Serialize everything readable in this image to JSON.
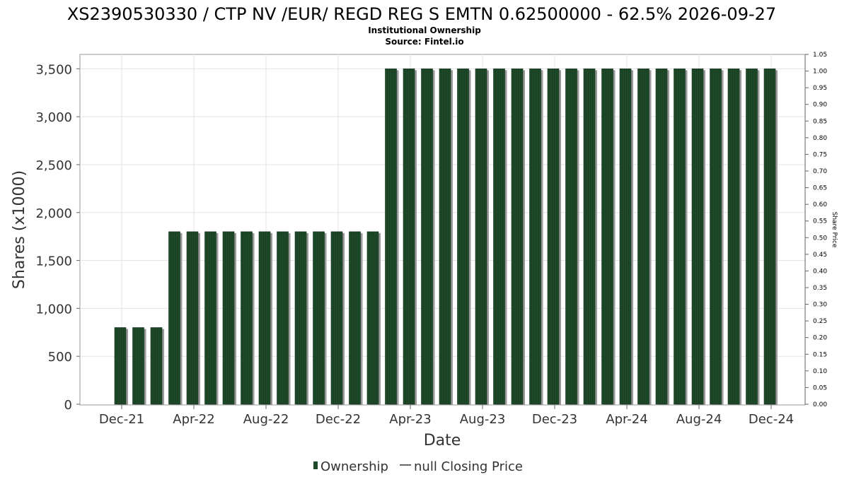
{
  "chart_data": {
    "type": "bar",
    "title": "XS2390530330 / CTP NV /EUR/ REGD REG S EMTN 0.62500000 - 62.5% 2026-09-27",
    "subtitle_1": "Institutional Ownership",
    "subtitle_2": "Source: Fintel.io",
    "xlabel": "Date",
    "ylabel": "Shares (x1000)",
    "ylabel_right": "Share Price",
    "ylim": [
      0,
      3650
    ],
    "ylim_right": [
      0,
      1.05
    ],
    "grid": true,
    "left_ticks": [
      {
        "value": 0,
        "label": "0"
      },
      {
        "value": 500,
        "label": "500"
      },
      {
        "value": 1000,
        "label": "1,000"
      },
      {
        "value": 1500,
        "label": "1,500"
      },
      {
        "value": 2000,
        "label": "2,000"
      },
      {
        "value": 2500,
        "label": "2,500"
      },
      {
        "value": 3000,
        "label": "3,000"
      },
      {
        "value": 3500,
        "label": "3,500"
      }
    ],
    "right_ticks": [
      "0.00",
      "0.05",
      "0.10",
      "0.15",
      "0.20",
      "0.25",
      "0.30",
      "0.35",
      "0.40",
      "0.45",
      "0.50",
      "0.55",
      "0.60",
      "0.65",
      "0.70",
      "0.75",
      "0.80",
      "0.85",
      "0.90",
      "0.95",
      "1.00",
      "1.05"
    ],
    "x_ticks": [
      {
        "date": "2021-12-01",
        "label": "Dec-21"
      },
      {
        "date": "2022-04-01",
        "label": "Apr-22"
      },
      {
        "date": "2022-08-01",
        "label": "Aug-22"
      },
      {
        "date": "2022-12-01",
        "label": "Dec-22"
      },
      {
        "date": "2023-04-01",
        "label": "Apr-23"
      },
      {
        "date": "2023-08-01",
        "label": "Aug-23"
      },
      {
        "date": "2023-12-01",
        "label": "Dec-23"
      },
      {
        "date": "2024-04-01",
        "label": "Apr-24"
      },
      {
        "date": "2024-08-01",
        "label": "Aug-24"
      },
      {
        "date": "2024-12-01",
        "label": "Dec-24"
      }
    ],
    "series": [
      {
        "name": "Ownership",
        "color": "#1e4a2a",
        "points": [
          {
            "x": "2021-12-01",
            "y": 800
          },
          {
            "x": "2022-01-01",
            "y": 800
          },
          {
            "x": "2022-02-01",
            "y": 800
          },
          {
            "x": "2022-03-01",
            "y": 1800
          },
          {
            "x": "2022-04-01",
            "y": 1800
          },
          {
            "x": "2022-05-01",
            "y": 1800
          },
          {
            "x": "2022-06-01",
            "y": 1800
          },
          {
            "x": "2022-07-01",
            "y": 1800
          },
          {
            "x": "2022-08-01",
            "y": 1800
          },
          {
            "x": "2022-09-01",
            "y": 1800
          },
          {
            "x": "2022-10-01",
            "y": 1800
          },
          {
            "x": "2022-11-01",
            "y": 1800
          },
          {
            "x": "2022-12-01",
            "y": 1800
          },
          {
            "x": "2023-01-01",
            "y": 1800
          },
          {
            "x": "2023-02-01",
            "y": 1800
          },
          {
            "x": "2023-03-01",
            "y": 3500
          },
          {
            "x": "2023-04-01",
            "y": 3500
          },
          {
            "x": "2023-05-01",
            "y": 3500
          },
          {
            "x": "2023-06-01",
            "y": 3500
          },
          {
            "x": "2023-07-01",
            "y": 3500
          },
          {
            "x": "2023-08-01",
            "y": 3500
          },
          {
            "x": "2023-09-01",
            "y": 3500
          },
          {
            "x": "2023-10-01",
            "y": 3500
          },
          {
            "x": "2023-11-01",
            "y": 3500
          },
          {
            "x": "2023-12-01",
            "y": 3500
          },
          {
            "x": "2024-01-01",
            "y": 3500
          },
          {
            "x": "2024-02-01",
            "y": 3500
          },
          {
            "x": "2024-03-01",
            "y": 3500
          },
          {
            "x": "2024-04-01",
            "y": 3500
          },
          {
            "x": "2024-05-01",
            "y": 3500
          },
          {
            "x": "2024-06-01",
            "y": 3500
          },
          {
            "x": "2024-07-01",
            "y": 3500
          },
          {
            "x": "2024-08-01",
            "y": 3500
          },
          {
            "x": "2024-09-01",
            "y": 3500
          },
          {
            "x": "2024-10-01",
            "y": 3500
          },
          {
            "x": "2024-11-01",
            "y": 3500
          },
          {
            "x": "2024-12-01",
            "y": 3500
          }
        ]
      },
      {
        "name": "null Closing Price",
        "color": "#555555",
        "points": []
      }
    ],
    "legend": {
      "placement": "bottom-center",
      "items": [
        "Ownership",
        "null Closing Price"
      ]
    }
  }
}
